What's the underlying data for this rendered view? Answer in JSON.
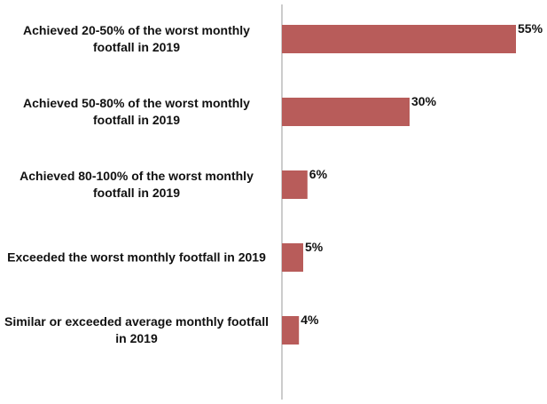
{
  "chart_data": {
    "type": "bar",
    "orientation": "horizontal",
    "categories": [
      "Achieved 20-50% of the worst monthly footfall in 2019",
      "Achieved 50-80% of the worst monthly footfall in 2019",
      "Achieved 80-100% of the worst monthly footfall in 2019",
      "Exceeded the worst monthly footfall in 2019",
      "Similar or exceeded average monthly footfall in 2019"
    ],
    "values": [
      55,
      30,
      6,
      5,
      4
    ],
    "data_labels": [
      "55%",
      "30%",
      "6%",
      "5%",
      "4%"
    ],
    "unit": "%",
    "xlim": [
      0,
      55
    ],
    "grid": false,
    "legend": "none",
    "bar_color": "#b85c5a",
    "axis_color": "#9a9a9a"
  }
}
